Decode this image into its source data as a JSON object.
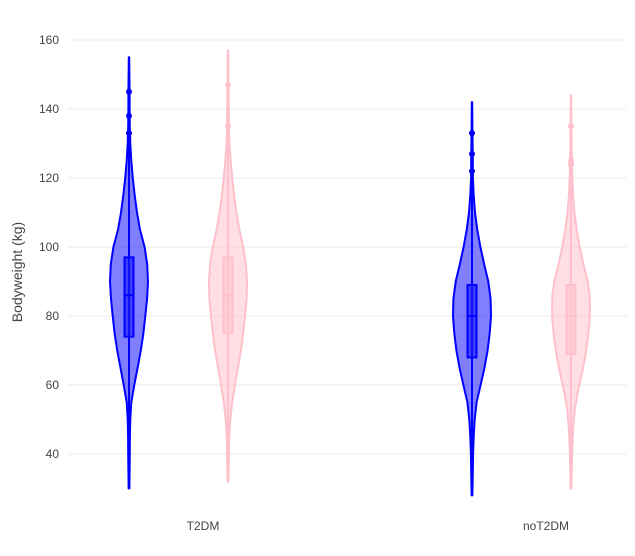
{
  "chart_data": {
    "type": "violin",
    "title": "",
    "xlabel": "",
    "ylabel": "Bodyweight (kg)",
    "ylim": [
      27,
      166
    ],
    "yticks": [
      40,
      60,
      80,
      100,
      120,
      140,
      160
    ],
    "grid": true,
    "legend": "none",
    "categories": [
      "T2DM",
      "noT2DM"
    ],
    "series": [
      {
        "color": "#0000ff",
        "fill_opacity": 0.5,
        "groups": [
          {
            "category": "T2DM",
            "min": 30,
            "max": 155,
            "q1": 74,
            "median": 86,
            "q3": 97,
            "whisker_low": 30,
            "whisker_high": 131,
            "outliers": [
              133,
              138,
              145
            ],
            "density": [
              [
                30,
                0.02
              ],
              [
                35,
                0.03
              ],
              [
                40,
                0.04
              ],
              [
                45,
                0.05
              ],
              [
                50,
                0.07
              ],
              [
                55,
                0.12
              ],
              [
                60,
                0.28
              ],
              [
                65,
                0.45
              ],
              [
                70,
                0.62
              ],
              [
                75,
                0.76
              ],
              [
                80,
                0.86
              ],
              [
                85,
                0.95
              ],
              [
                90,
                1.0
              ],
              [
                95,
                0.96
              ],
              [
                100,
                0.82
              ],
              [
                105,
                0.58
              ],
              [
                110,
                0.42
              ],
              [
                115,
                0.3
              ],
              [
                120,
                0.2
              ],
              [
                125,
                0.12
              ],
              [
                130,
                0.07
              ],
              [
                135,
                0.04
              ],
              [
                140,
                0.03
              ],
              [
                145,
                0.03
              ],
              [
                150,
                0.02
              ],
              [
                155,
                0.01
              ]
            ]
          },
          {
            "category": "noT2DM",
            "min": 28,
            "max": 142,
            "q1": 68,
            "median": 80,
            "q3": 89,
            "whisker_low": 28,
            "whisker_high": 121,
            "outliers": [
              122,
              127,
              133
            ],
            "density": [
              [
                28,
                0.02
              ],
              [
                35,
                0.04
              ],
              [
                40,
                0.06
              ],
              [
                45,
                0.09
              ],
              [
                50,
                0.14
              ],
              [
                55,
                0.24
              ],
              [
                60,
                0.45
              ],
              [
                65,
                0.66
              ],
              [
                70,
                0.82
              ],
              [
                75,
                0.93
              ],
              [
                80,
                1.0
              ],
              [
                85,
                0.98
              ],
              [
                90,
                0.86
              ],
              [
                95,
                0.64
              ],
              [
                100,
                0.44
              ],
              [
                105,
                0.28
              ],
              [
                110,
                0.16
              ],
              [
                115,
                0.09
              ],
              [
                120,
                0.05
              ],
              [
                125,
                0.04
              ],
              [
                130,
                0.03
              ],
              [
                135,
                0.02
              ],
              [
                142,
                0.01
              ]
            ]
          }
        ]
      },
      {
        "color": "#ffc0cb",
        "fill_opacity": 0.5,
        "groups": [
          {
            "category": "T2DM",
            "min": 32,
            "max": 157,
            "q1": 75,
            "median": 86,
            "q3": 97,
            "whisker_low": 32,
            "whisker_high": 131,
            "outliers": [
              135,
              147
            ],
            "density": [
              [
                32,
                0.02
              ],
              [
                38,
                0.04
              ],
              [
                44,
                0.06
              ],
              [
                50,
                0.12
              ],
              [
                55,
                0.22
              ],
              [
                60,
                0.36
              ],
              [
                65,
                0.52
              ],
              [
                70,
                0.68
              ],
              [
                75,
                0.8
              ],
              [
                80,
                0.9
              ],
              [
                85,
                0.98
              ],
              [
                90,
                1.0
              ],
              [
                95,
                0.94
              ],
              [
                100,
                0.8
              ],
              [
                105,
                0.6
              ],
              [
                110,
                0.44
              ],
              [
                115,
                0.32
              ],
              [
                120,
                0.22
              ],
              [
                125,
                0.14
              ],
              [
                130,
                0.08
              ],
              [
                135,
                0.05
              ],
              [
                140,
                0.04
              ],
              [
                145,
                0.03
              ],
              [
                150,
                0.02
              ],
              [
                157,
                0.01
              ]
            ]
          },
          {
            "category": "noT2DM",
            "min": 30,
            "max": 144,
            "q1": 69,
            "median": 80,
            "q3": 89,
            "whisker_low": 30,
            "whisker_high": 121,
            "outliers": [
              124,
              125,
              135
            ],
            "density": [
              [
                30,
                0.02
              ],
              [
                36,
                0.04
              ],
              [
                42,
                0.07
              ],
              [
                48,
                0.12
              ],
              [
                53,
                0.2
              ],
              [
                58,
                0.36
              ],
              [
                63,
                0.56
              ],
              [
                68,
                0.74
              ],
              [
                73,
                0.88
              ],
              [
                78,
                0.97
              ],
              [
                82,
                1.0
              ],
              [
                86,
                0.98
              ],
              [
                90,
                0.88
              ],
              [
                95,
                0.66
              ],
              [
                100,
                0.46
              ],
              [
                105,
                0.3
              ],
              [
                110,
                0.18
              ],
              [
                115,
                0.11
              ],
              [
                120,
                0.07
              ],
              [
                125,
                0.05
              ],
              [
                130,
                0.03
              ],
              [
                137,
                0.02
              ],
              [
                144,
                0.01
              ]
            ]
          }
        ]
      }
    ]
  }
}
